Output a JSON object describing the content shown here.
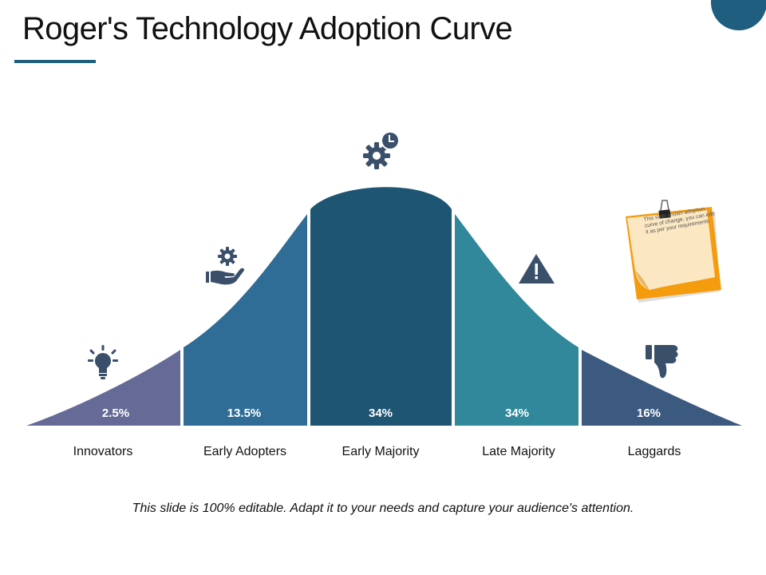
{
  "title": "Roger's Technology Adoption Curve",
  "colors": {
    "accent": "#1f5e7e",
    "innovators": "#656b96",
    "early_adopters": "#2f6d96",
    "early_majority": "#1e5573",
    "late_majority": "#30889a",
    "laggards": "#3c5a80",
    "icon": "#3a4f6a",
    "note_orange": "#f59c0e",
    "note_paper": "#fbe7c2"
  },
  "segments": [
    {
      "label": "Innovators",
      "percent": "2.5%",
      "icon": "lightbulb-icon"
    },
    {
      "label": "Early Adopters",
      "percent": "13.5%",
      "icon": "hand-gear-icon"
    },
    {
      "label": "Early Majority",
      "percent": "34%",
      "icon": "gear-clock-icon"
    },
    {
      "label": "Late Majority",
      "percent": "34%",
      "icon": "warning-icon"
    },
    {
      "label": "Laggards",
      "percent": "16%",
      "icon": "thumbs-down-icon"
    }
  ],
  "note": {
    "text": "This slide shows adoption curve of change, you can edit it as per your requirements"
  },
  "footer": "This slide is 100% editable. Adapt it to your needs and capture your audience's attention."
}
